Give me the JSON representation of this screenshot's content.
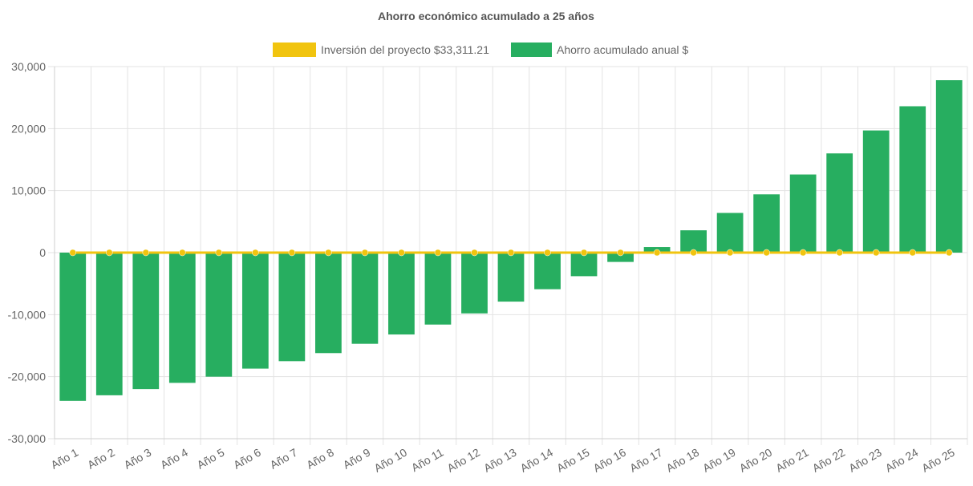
{
  "chart_data": {
    "type": "bar",
    "title": "Ahorro económico acumulado a 25 años",
    "categories": [
      "Año 1",
      "Año 2",
      "Año 3",
      "Año 4",
      "Año 5",
      "Año 6",
      "Año 7",
      "Año 8",
      "Año 9",
      "Año 10",
      "Año 11",
      "Año 12",
      "Año 13",
      "Año 14",
      "Año 15",
      "Año 16",
      "Año 17",
      "Año 18",
      "Año 19",
      "Año 20",
      "Año 21",
      "Año 22",
      "Año 23",
      "Año 24",
      "Año 25"
    ],
    "series": [
      {
        "name": "Inversión del proyecto $33,311.21",
        "kind": "line",
        "color": "#f1c40f",
        "values": [
          0,
          0,
          0,
          0,
          0,
          0,
          0,
          0,
          0,
          0,
          0,
          0,
          0,
          0,
          0,
          0,
          0,
          0,
          0,
          0,
          0,
          0,
          0,
          0,
          0
        ]
      },
      {
        "name": "Ahorro acumulado anual $",
        "kind": "bar",
        "color": "#27ae60",
        "values": [
          -23900,
          -23000,
          -22000,
          -21000,
          -20000,
          -18700,
          -17500,
          -16200,
          -14700,
          -13200,
          -11600,
          -9800,
          -7900,
          -5900,
          -3800,
          -1500,
          900,
          3600,
          6400,
          9400,
          12600,
          16000,
          19700,
          23600,
          27800
        ]
      }
    ],
    "ylim": [
      -30000,
      30000
    ],
    "yticks": [
      30000,
      20000,
      10000,
      0,
      -10000,
      -20000,
      -30000
    ],
    "ytick_labels": [
      "30,000",
      "20,000",
      "10,000",
      "0",
      "-10,000",
      "-20,000",
      "-30,000"
    ],
    "xlabel": "",
    "ylabel": "",
    "grid": true,
    "legend_position": "top"
  }
}
